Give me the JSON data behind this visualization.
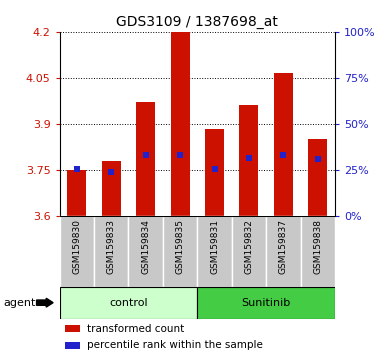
{
  "title": "GDS3109 / 1387698_at",
  "samples": [
    "GSM159830",
    "GSM159833",
    "GSM159834",
    "GSM159835",
    "GSM159831",
    "GSM159832",
    "GSM159837",
    "GSM159838"
  ],
  "bar_tops": [
    3.75,
    3.78,
    3.97,
    4.2,
    3.885,
    3.96,
    4.065,
    3.85
  ],
  "bar_bottom": 3.6,
  "blue_dots": [
    3.752,
    3.743,
    3.8,
    3.8,
    3.752,
    3.79,
    3.8,
    3.785
  ],
  "ylim": [
    3.6,
    4.2
  ],
  "yticks_left": [
    3.6,
    3.75,
    3.9,
    4.05,
    4.2
  ],
  "yticks_right": [
    0,
    25,
    50,
    75,
    100
  ],
  "bar_color": "#CC1100",
  "dot_color": "#2222CC",
  "group_control_color": "#CCFFCC",
  "group_sunitinib_color": "#44CC44",
  "xlabel_color": "#CC1100",
  "ylabel_right_color": "#2222CC",
  "grid_color": "#000000",
  "background_color": "#FFFFFF",
  "agent_label": "agent",
  "legend_items": [
    {
      "color": "#CC1100",
      "label": "transformed count"
    },
    {
      "color": "#2222CC",
      "label": "percentile rank within the sample"
    }
  ],
  "groups": [
    {
      "label": "control",
      "indices": [
        0,
        1,
        2,
        3
      ]
    },
    {
      "label": "Sunitinib",
      "indices": [
        4,
        5,
        6,
        7
      ]
    }
  ]
}
